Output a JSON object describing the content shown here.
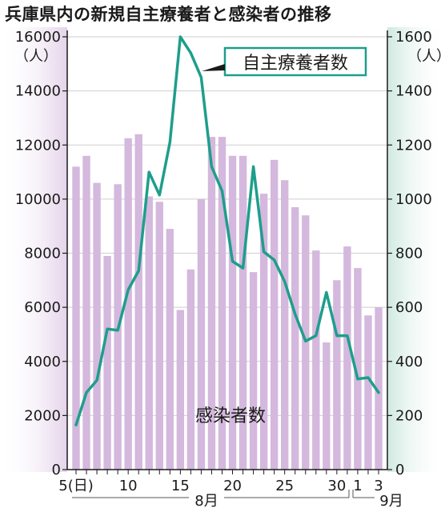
{
  "title": "兵庫県内の新規自主療養者と感染者の推移",
  "chart_data": {
    "type": "bar+line",
    "x_days": [
      5,
      6,
      7,
      8,
      9,
      10,
      11,
      12,
      13,
      14,
      15,
      16,
      17,
      18,
      19,
      20,
      21,
      22,
      23,
      24,
      25,
      26,
      27,
      28,
      29,
      30,
      31,
      1,
      2,
      3
    ],
    "x_tick_labels": [
      {
        "day": 5,
        "label": "5(日)"
      },
      {
        "day": 10,
        "label": "10"
      },
      {
        "day": 15,
        "label": "15"
      },
      {
        "day": 20,
        "label": "20"
      },
      {
        "day": 25,
        "label": "25"
      },
      {
        "day": 30,
        "label": "30"
      },
      {
        "day": 1,
        "label": "1"
      },
      {
        "day": 3,
        "label": "3"
      }
    ],
    "month_labels": {
      "aug": "8月",
      "sep": "9月"
    },
    "left_axis": {
      "unit": "（人）",
      "min": 0,
      "max": 16000,
      "ticks": [
        0,
        2000,
        4000,
        6000,
        8000,
        10000,
        12000,
        14000,
        16000
      ]
    },
    "right_axis": {
      "unit": "（人）",
      "min": 0,
      "max": 1600,
      "ticks": [
        0,
        200,
        400,
        600,
        800,
        1000,
        1200,
        1400,
        1600
      ]
    },
    "bar_series": {
      "name": "感染者数",
      "axis": "left",
      "values": [
        11200,
        11600,
        10600,
        7900,
        10550,
        12250,
        12400,
        10100,
        9900,
        8900,
        5900,
        7400,
        10000,
        12300,
        12300,
        11600,
        11600,
        7300,
        10200,
        11450,
        10700,
        9700,
        9400,
        8100,
        4700,
        7000,
        8250,
        7450,
        5700,
        6000
      ]
    },
    "line_series": {
      "name": "自主療養者数",
      "axis": "right",
      "values": [
        165,
        285,
        330,
        520,
        515,
        665,
        735,
        1100,
        1015,
        1210,
        1600,
        1540,
        1450,
        1120,
        1030,
        770,
        745,
        1120,
        805,
        775,
        695,
        575,
        475,
        495,
        655,
        495,
        495,
        335,
        340,
        285
      ]
    },
    "colors": {
      "bar": "#d4b8dd",
      "line": "#1e9e8c",
      "grid": "#cfcfcf",
      "left_band": "#e4d3ea",
      "right_band": "#cfe9e1"
    }
  }
}
